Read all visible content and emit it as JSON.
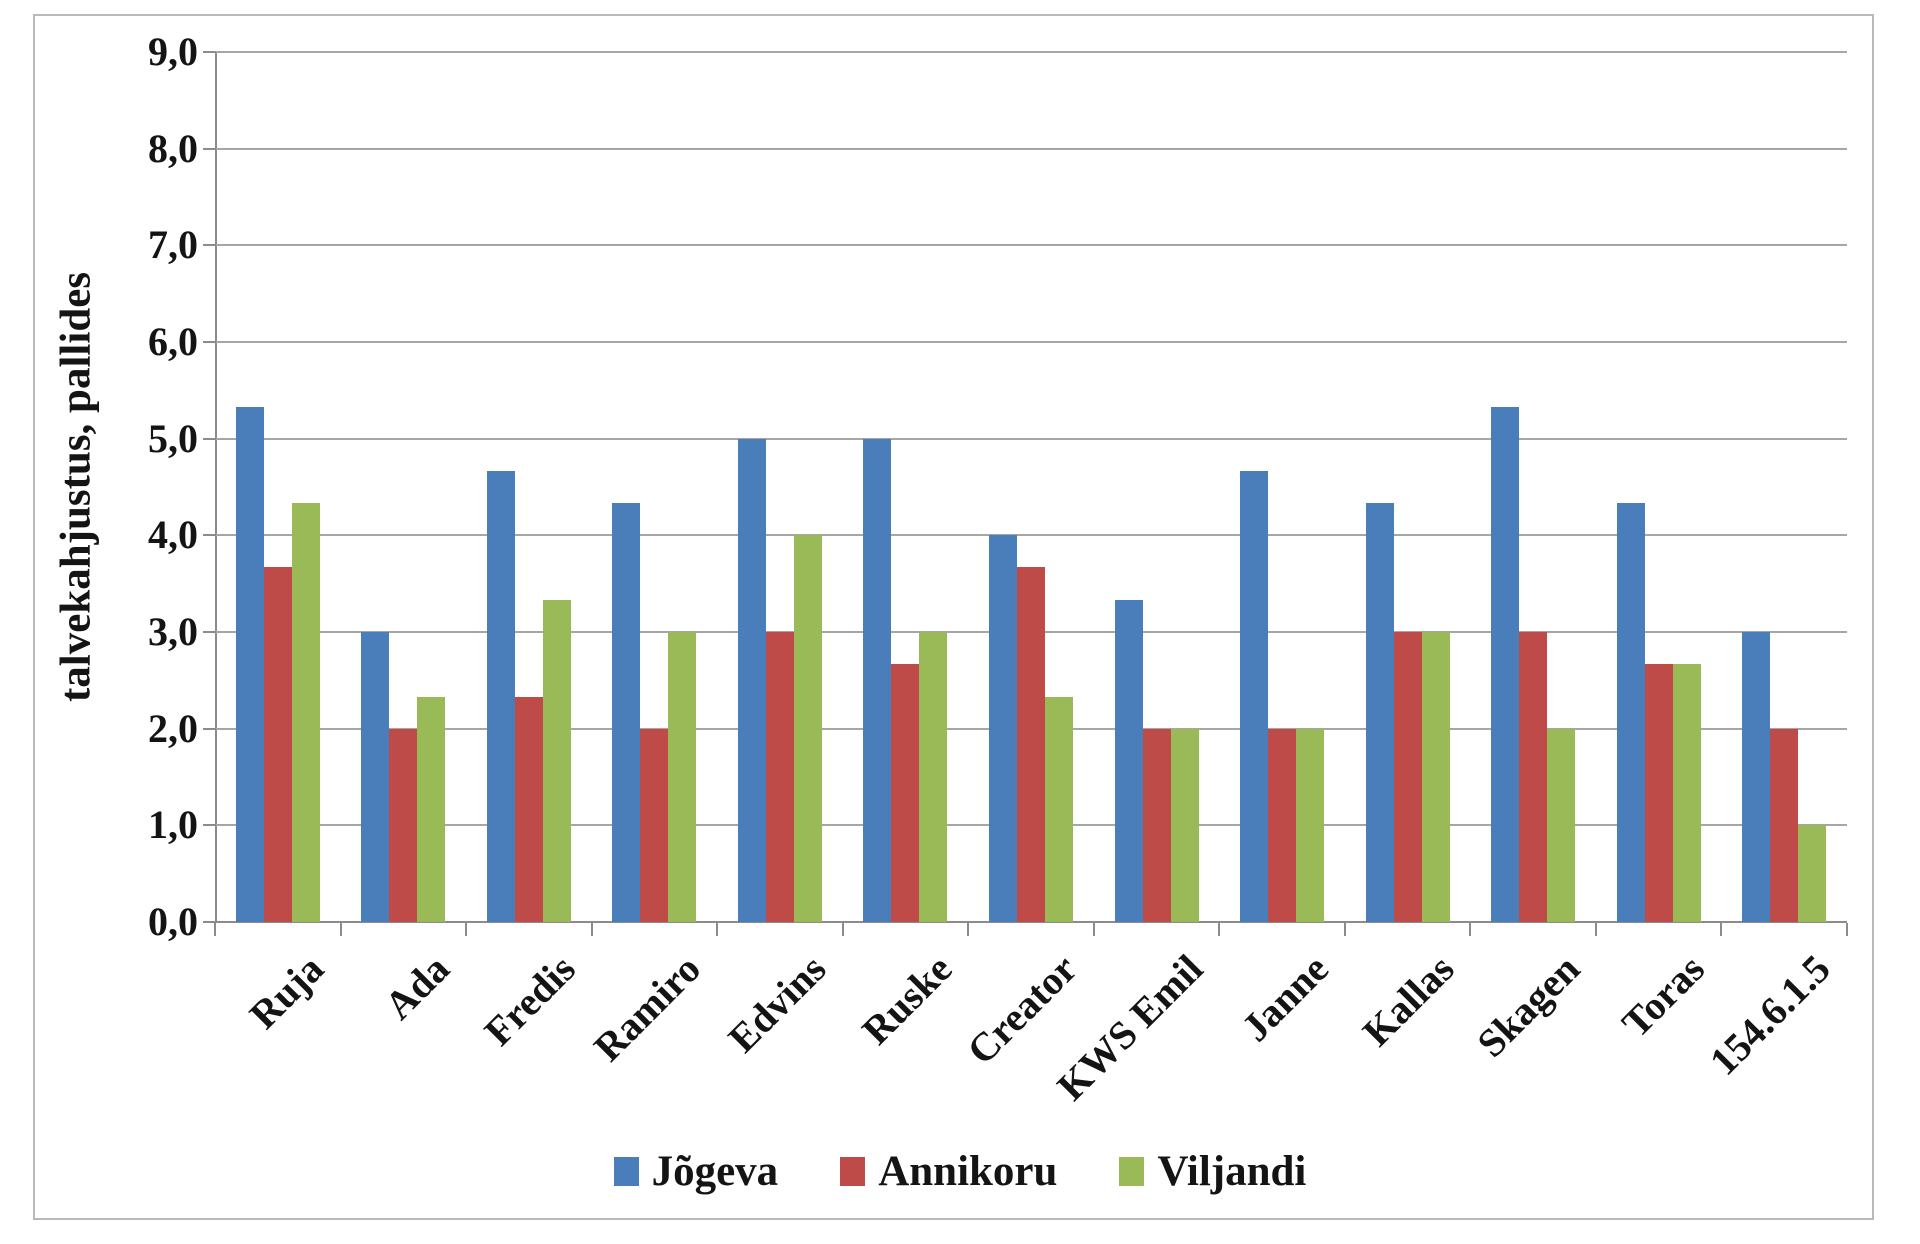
{
  "chart_data": {
    "type": "bar",
    "title": "",
    "xlabel": "",
    "ylabel": "talvekahjustus, pallides",
    "ylim": [
      0,
      9
    ],
    "grid": true,
    "legend_position": "bottom-center",
    "decimal_separator": ",",
    "yticks": [
      {
        "value": 9,
        "label": "9,0"
      },
      {
        "value": 8,
        "label": "8,0"
      },
      {
        "value": 7,
        "label": "7,0"
      },
      {
        "value": 6,
        "label": "6,0"
      },
      {
        "value": 5,
        "label": "5,0"
      },
      {
        "value": 4,
        "label": "4,0"
      },
      {
        "value": 3,
        "label": "3,0"
      },
      {
        "value": 2,
        "label": "2,0"
      },
      {
        "value": 1,
        "label": "1,0"
      },
      {
        "value": 0,
        "label": "0,0"
      }
    ],
    "categories": [
      "Ruja",
      "Ada",
      "Fredis",
      "Ramiro",
      "Edvins",
      "Ruske",
      "Creator",
      "KWS Emil",
      "Janne",
      "Kallas",
      "Skagen",
      "Toras",
      "154.6.1.5"
    ],
    "series": [
      {
        "name": "Jõgeva",
        "color": "#4A7EBB",
        "values": [
          5.33,
          3.0,
          4.67,
          4.33,
          5.0,
          5.0,
          4.0,
          3.33,
          4.67,
          4.33,
          5.33,
          4.33,
          3.0
        ]
      },
      {
        "name": "Annikoru",
        "color": "#BE4B48",
        "values": [
          3.67,
          2.0,
          2.33,
          2.0,
          3.0,
          2.67,
          3.67,
          2.0,
          2.0,
          3.0,
          3.0,
          2.67,
          2.0
        ]
      },
      {
        "name": "Viljandi",
        "color": "#9ABA58",
        "values": [
          4.33,
          2.33,
          3.33,
          3.0,
          4.0,
          3.0,
          2.33,
          2.0,
          2.0,
          3.0,
          2.0,
          2.67,
          1.0
        ]
      }
    ],
    "colors": {
      "gridline": "#A6A6A6",
      "axis": "#8C8C8C",
      "frame_border": "#B9B9B9",
      "text": "#141414"
    }
  }
}
